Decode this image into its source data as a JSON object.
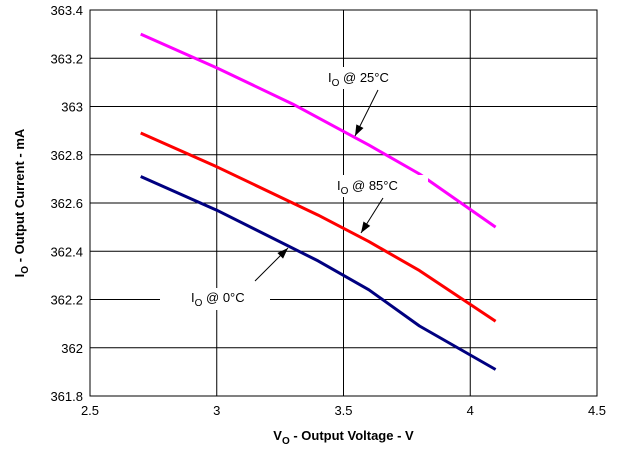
{
  "chart_data": {
    "type": "line",
    "xlabel": {
      "main": "V",
      "sub": "O",
      "rest": " - Output Voltage - V"
    },
    "ylabel": {
      "main": "I",
      "sub": "O",
      "rest": " - Output Current - mA"
    },
    "xlim": [
      2.5,
      4.5
    ],
    "ylim": [
      361.8,
      363.4
    ],
    "xticks": [
      "2.5",
      "3",
      "3.5",
      "4",
      "4.5"
    ],
    "yticks": [
      "361.8",
      "362",
      "362.2",
      "362.4",
      "362.6",
      "362.8",
      "363",
      "363.2",
      "363.4"
    ],
    "grid": true,
    "series": [
      {
        "color": "#ff00ff",
        "x": [
          2.7,
          3.0,
          3.3,
          3.6,
          3.8,
          4.1
        ],
        "y": [
          363.3,
          363.16,
          363.01,
          362.84,
          362.72,
          362.5
        ]
      },
      {
        "color": "#ff0000",
        "x": [
          2.7,
          3.0,
          3.4,
          3.6,
          3.8,
          4.1
        ],
        "y": [
          362.89,
          362.75,
          362.55,
          362.44,
          362.32,
          362.11
        ]
      },
      {
        "color": "#000080",
        "x": [
          2.7,
          3.0,
          3.4,
          3.6,
          3.8,
          4.1
        ],
        "y": [
          362.71,
          362.57,
          362.36,
          362.24,
          362.09,
          361.91
        ]
      }
    ],
    "annotations": [
      {
        "main": "I",
        "sub": "O",
        "rest": " @ 25°C",
        "series": 0
      },
      {
        "main": "I",
        "sub": "O",
        "rest": " @ 85°C",
        "series": 1
      },
      {
        "main": "I",
        "sub": "O",
        "rest": " @ 0°C",
        "series": 2
      }
    ]
  }
}
